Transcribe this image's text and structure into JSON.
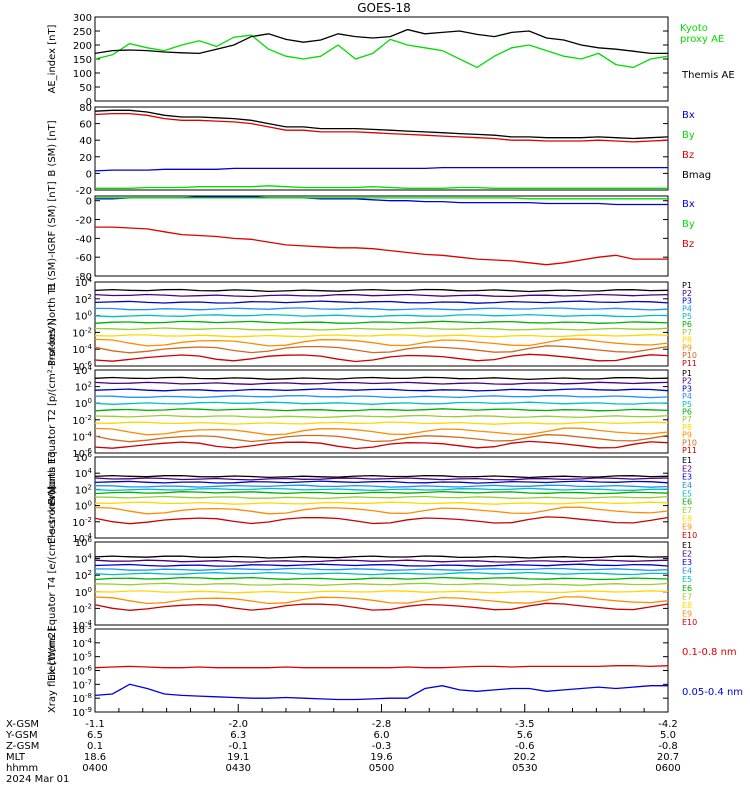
{
  "title": "GOES-18",
  "colors": {
    "black": "#000000",
    "green": "#00dd00",
    "blue": "#0000dd",
    "red": "#dd0000",
    "p_series": [
      "#000000",
      "#4b0082",
      "#0000cd",
      "#1e90ff",
      "#00bfbf",
      "#00b000",
      "#9acd32",
      "#ffd700",
      "#ff8c00",
      "#d2691e",
      "#cc0000"
    ]
  },
  "chart_data": [
    {
      "type": "line",
      "panel": "ae",
      "ylabel": "AE_index [nT]",
      "ylim": [
        0,
        300
      ],
      "yticks": [
        "0",
        "50",
        "100",
        "150",
        "200",
        "250",
        "300"
      ],
      "series": [
        {
          "name": "Kyoto proxy AE",
          "label_lines": [
            "Kyoto",
            "proxy AE"
          ],
          "color": "green",
          "values": [
            150,
            165,
            205,
            190,
            180,
            200,
            215,
            195,
            228,
            235,
            185,
            160,
            150,
            160,
            200,
            150,
            170,
            220,
            200,
            190,
            180,
            150,
            120,
            160,
            190,
            200,
            180,
            160,
            150,
            170,
            130,
            120,
            150,
            160
          ]
        },
        {
          "name": "Themis AE",
          "color": "black",
          "values": [
            170,
            180,
            182,
            180,
            175,
            172,
            170,
            185,
            200,
            230,
            240,
            220,
            210,
            218,
            240,
            230,
            225,
            230,
            255,
            240,
            245,
            250,
            238,
            230,
            245,
            250,
            225,
            218,
            200,
            190,
            185,
            178,
            170,
            170
          ]
        }
      ]
    },
    {
      "type": "line",
      "panel": "b_sm",
      "ylabel": "B (SM) [nT]",
      "ylim": [
        -20,
        80
      ],
      "yticks": [
        "-20",
        "0",
        "20",
        "40",
        "60",
        "80"
      ],
      "series": [
        {
          "name": "Bx",
          "color": "blue",
          "values": [
            3,
            4,
            4,
            4,
            5,
            5,
            5,
            5,
            6,
            6,
            6,
            6,
            6,
            6,
            6,
            6,
            6,
            6,
            6,
            6,
            7,
            7,
            7,
            7,
            7,
            7,
            7,
            7,
            7,
            7,
            7,
            7,
            7,
            7
          ]
        },
        {
          "name": "By",
          "color": "green",
          "values": [
            -18,
            -18,
            -18,
            -17,
            -17,
            -17,
            -16,
            -16,
            -16,
            -16,
            -15,
            -16,
            -17,
            -17,
            -17,
            -17,
            -16,
            -17,
            -18,
            -18,
            -18,
            -17,
            -17,
            -18,
            -18,
            -18,
            -18,
            -18,
            -18,
            -18,
            -18,
            -18,
            -18,
            -18
          ]
        },
        {
          "name": "Bz",
          "color": "red",
          "values": [
            71,
            72,
            72,
            70,
            66,
            64,
            64,
            63,
            62,
            60,
            56,
            52,
            52,
            50,
            50,
            50,
            49,
            48,
            47,
            46,
            45,
            44,
            43,
            42,
            40,
            40,
            39,
            39,
            39,
            40,
            39,
            38,
            39,
            40
          ]
        },
        {
          "name": "Bmag",
          "color": "black",
          "values": [
            75,
            76,
            76,
            74,
            70,
            68,
            68,
            67,
            66,
            64,
            60,
            56,
            56,
            54,
            54,
            54,
            53,
            52,
            51,
            50,
            49,
            48,
            47,
            46,
            44,
            44,
            43,
            43,
            43,
            44,
            43,
            42,
            43,
            44
          ]
        }
      ]
    },
    {
      "type": "line",
      "panel": "b_igrf",
      "ylabel": "B (SM)-IGRF (SM) [nT]",
      "ylim": [
        -80,
        5
      ],
      "yticks": [
        "-80",
        "-60",
        "-40",
        "-20",
        "0"
      ],
      "series": [
        {
          "name": "Bx",
          "color": "blue",
          "values": [
            2,
            2,
            3,
            3,
            3,
            3,
            4,
            4,
            4,
            4,
            3,
            3,
            3,
            2,
            2,
            2,
            1,
            0,
            0,
            -1,
            -1,
            -2,
            -2,
            -2,
            -2,
            -2,
            -3,
            -3,
            -3,
            -3,
            -4,
            -4,
            -4,
            -4
          ]
        },
        {
          "name": "By",
          "color": "green",
          "values": [
            3,
            3,
            3,
            3,
            3,
            3,
            3,
            3,
            3,
            3,
            3,
            3,
            3,
            3,
            3,
            3,
            3,
            3,
            3,
            3,
            3,
            3,
            3,
            3,
            3,
            2,
            2,
            2,
            2,
            2,
            2,
            2,
            2,
            2
          ]
        },
        {
          "name": "Bz",
          "color": "red",
          "values": [
            -28,
            -28,
            -29,
            -30,
            -33,
            -36,
            -37,
            -38,
            -40,
            -41,
            -44,
            -47,
            -48,
            -49,
            -50,
            -50,
            -51,
            -53,
            -55,
            -57,
            -58,
            -60,
            -62,
            -63,
            -64,
            -66,
            -68,
            -66,
            -63,
            -60,
            -58,
            -62,
            -62,
            -62
          ]
        }
      ]
    },
    {
      "type": "line",
      "panel": "p_north",
      "log": true,
      "ylabel": "Protons North T1",
      "ylim": [
        -6,
        4
      ],
      "yticks": [
        {
          "t": "10",
          "e": "4",
          "v": 4
        },
        {
          "t": "10",
          "e": "2",
          "v": 2
        },
        {
          "t": "10",
          "e": "0",
          "v": 0
        },
        {
          "t": "10",
          "e": "-2",
          "v": -2
        },
        {
          "t": "10",
          "e": "-4",
          "v": -4
        },
        {
          "t": "10",
          "e": "-6",
          "v": -6
        }
      ],
      "series": [
        {
          "name": "P1",
          "ci": 0,
          "level": 3.0
        },
        {
          "name": "P2",
          "ci": 1,
          "level": 2.4
        },
        {
          "name": "P3",
          "ci": 2,
          "level": 1.6
        },
        {
          "name": "P4",
          "ci": 3,
          "level": 0.8
        },
        {
          "name": "P5",
          "ci": 4,
          "level": 0.0
        },
        {
          "name": "P6",
          "ci": 5,
          "level": -0.8
        },
        {
          "name": "P7",
          "ci": 6,
          "level": -1.6
        },
        {
          "name": "P8",
          "ci": 7,
          "level": -2.4
        },
        {
          "name": "P9",
          "ci": 8,
          "level": -3.2
        },
        {
          "name": "P10",
          "ci": 9,
          "level": -4.0
        },
        {
          "name": "P11",
          "ci": 10,
          "level": -5.0
        }
      ]
    },
    {
      "type": "line",
      "panel": "p_equator",
      "log": true,
      "ylabel": "Protons Equator T2 [p/(cm²-s-sr-keV)]",
      "ylim": [
        -6,
        4
      ],
      "yticks": [
        {
          "t": "10",
          "e": "4",
          "v": 4
        },
        {
          "t": "10",
          "e": "2",
          "v": 2
        },
        {
          "t": "10",
          "e": "0",
          "v": 0
        },
        {
          "t": "10",
          "e": "-2",
          "v": -2
        },
        {
          "t": "10",
          "e": "-4",
          "v": -4
        },
        {
          "t": "10",
          "e": "-6",
          "v": -6
        }
      ],
      "series": [
        {
          "name": "P1",
          "ci": 0,
          "level": 3.0
        },
        {
          "name": "P2",
          "ci": 1,
          "level": 2.4
        },
        {
          "name": "P3",
          "ci": 2,
          "level": 1.6
        },
        {
          "name": "P4",
          "ci": 3,
          "level": 0.8
        },
        {
          "name": "P5",
          "ci": 4,
          "level": 0.0
        },
        {
          "name": "P6",
          "ci": 5,
          "level": -0.8
        },
        {
          "name": "P7",
          "ci": 6,
          "level": -1.6
        },
        {
          "name": "P8",
          "ci": 7,
          "level": -2.4
        },
        {
          "name": "P9",
          "ci": 8,
          "level": -3.4
        },
        {
          "name": "P10",
          "ci": 9,
          "level": -4.2
        },
        {
          "name": "P11",
          "ci": 10,
          "level": -5.0
        }
      ]
    },
    {
      "type": "line",
      "panel": "e_north",
      "log": true,
      "ylabel": "Electrons North T3",
      "ylim": [
        -4,
        6
      ],
      "yticks": [
        {
          "t": "10",
          "e": "6",
          "v": 6
        },
        {
          "t": "10",
          "e": "4",
          "v": 4
        },
        {
          "t": "10",
          "e": "2",
          "v": 2
        },
        {
          "t": "10",
          "e": "0",
          "v": 0
        },
        {
          "t": "10",
          "e": "-2",
          "v": -2
        },
        {
          "t": "10",
          "e": "-4",
          "v": -4
        }
      ],
      "series": [
        {
          "name": "E1",
          "ci": 0,
          "level": 3.6
        },
        {
          "name": "E2",
          "ci": 1,
          "level": 3.3
        },
        {
          "name": "E3",
          "ci": 2,
          "level": 2.9
        },
        {
          "name": "E4",
          "ci": 3,
          "level": 2.4
        },
        {
          "name": "E5",
          "ci": 4,
          "level": 2.0
        },
        {
          "name": "E6",
          "ci": 5,
          "level": 1.6
        },
        {
          "name": "E7",
          "ci": 6,
          "level": 1.0
        },
        {
          "name": "E8",
          "ci": 7,
          "level": 0.3
        },
        {
          "name": "E9",
          "ci": 8,
          "level": -0.6
        },
        {
          "name": "E10",
          "ci": 10,
          "level": -1.8
        }
      ]
    },
    {
      "type": "line",
      "panel": "e_equator",
      "log": true,
      "ylabel": "Electrons Equator T4 [e/(cm²-s-sr-keV)]",
      "ylim": [
        -4,
        6
      ],
      "yticks": [
        {
          "t": "10",
          "e": "6",
          "v": 6
        },
        {
          "t": "10",
          "e": "4",
          "v": 4
        },
        {
          "t": "10",
          "e": "2",
          "v": 2
        },
        {
          "t": "10",
          "e": "0",
          "v": 0
        },
        {
          "t": "10",
          "e": "-2",
          "v": -2
        },
        {
          "t": "10",
          "e": "-4",
          "v": -4
        }
      ],
      "series": [
        {
          "name": "E1",
          "ci": 0,
          "level": 4.2
        },
        {
          "name": "E2",
          "ci": 1,
          "level": 3.7
        },
        {
          "name": "E3",
          "ci": 2,
          "level": 3.2
        },
        {
          "name": "E4",
          "ci": 3,
          "level": 2.7
        },
        {
          "name": "E5",
          "ci": 4,
          "level": 2.2
        },
        {
          "name": "E6",
          "ci": 5,
          "level": 1.6
        },
        {
          "name": "E7",
          "ci": 6,
          "level": 0.9
        },
        {
          "name": "E8",
          "ci": 7,
          "level": 0.0
        },
        {
          "name": "E9",
          "ci": 8,
          "level": -1.0
        },
        {
          "name": "E10",
          "ci": 10,
          "level": -1.8
        }
      ]
    },
    {
      "type": "line",
      "panel": "xray",
      "log": true,
      "ylabel": "Xray flux [W/m2]",
      "ylim": [
        -9,
        -3
      ],
      "yticks": [
        {
          "t": "10",
          "e": "-3",
          "v": -3
        },
        {
          "t": "10",
          "e": "-4",
          "v": -4
        },
        {
          "t": "10",
          "e": "-5",
          "v": -5
        },
        {
          "t": "10",
          "e": "-6",
          "v": -6
        },
        {
          "t": "10",
          "e": "-7",
          "v": -7
        },
        {
          "t": "10",
          "e": "-8",
          "v": -8
        },
        {
          "t": "10",
          "e": "-9",
          "v": -9
        }
      ],
      "series": [
        {
          "name": "0.1-0.8 nm",
          "color": "red",
          "values": [
            -5.8,
            -5.75,
            -5.7,
            -5.75,
            -5.8,
            -5.8,
            -5.75,
            -5.8,
            -5.8,
            -5.8,
            -5.8,
            -5.75,
            -5.8,
            -5.8,
            -5.8,
            -5.8,
            -5.8,
            -5.8,
            -5.75,
            -5.8,
            -5.8,
            -5.75,
            -5.7,
            -5.7,
            -5.75,
            -5.7,
            -5.7,
            -5.7,
            -5.7,
            -5.7,
            -5.65,
            -5.65,
            -5.7,
            -5.65
          ]
        },
        {
          "name": "0.05-0.4 nm",
          "color": "blue",
          "values": [
            -7.8,
            -7.7,
            -7.0,
            -7.3,
            -7.7,
            -7.8,
            -7.85,
            -7.9,
            -7.95,
            -8.0,
            -8.0,
            -7.95,
            -8.0,
            -8.05,
            -8.1,
            -8.1,
            -8.05,
            -8.0,
            -8.0,
            -7.3,
            -7.1,
            -7.4,
            -7.5,
            -7.4,
            -7.3,
            -7.3,
            -7.5,
            -7.4,
            -7.3,
            -7.2,
            -7.3,
            -7.2,
            -7.1,
            -7.1
          ]
        }
      ]
    }
  ],
  "x_axis": {
    "rows": [
      {
        "label": "X-GSM",
        "values": [
          "-1.1",
          "-2.0",
          "-2.8",
          "-3.5",
          "-4.2"
        ]
      },
      {
        "label": "Y-GSM",
        "values": [
          "6.5",
          "6.3",
          "6.0",
          "5.6",
          "5.0"
        ]
      },
      {
        "label": "Z-GSM",
        "values": [
          "0.1",
          "-0.1",
          "-0.3",
          "-0.6",
          "-0.8"
        ]
      },
      {
        "label": "MLT",
        "values": [
          "18.6",
          "19.1",
          "19.6",
          "20.2",
          "20.7"
        ]
      },
      {
        "label": "hhmm",
        "values": [
          "0400",
          "0430",
          "0500",
          "0530",
          "0600"
        ]
      }
    ],
    "date": "2024 Mar 01"
  }
}
